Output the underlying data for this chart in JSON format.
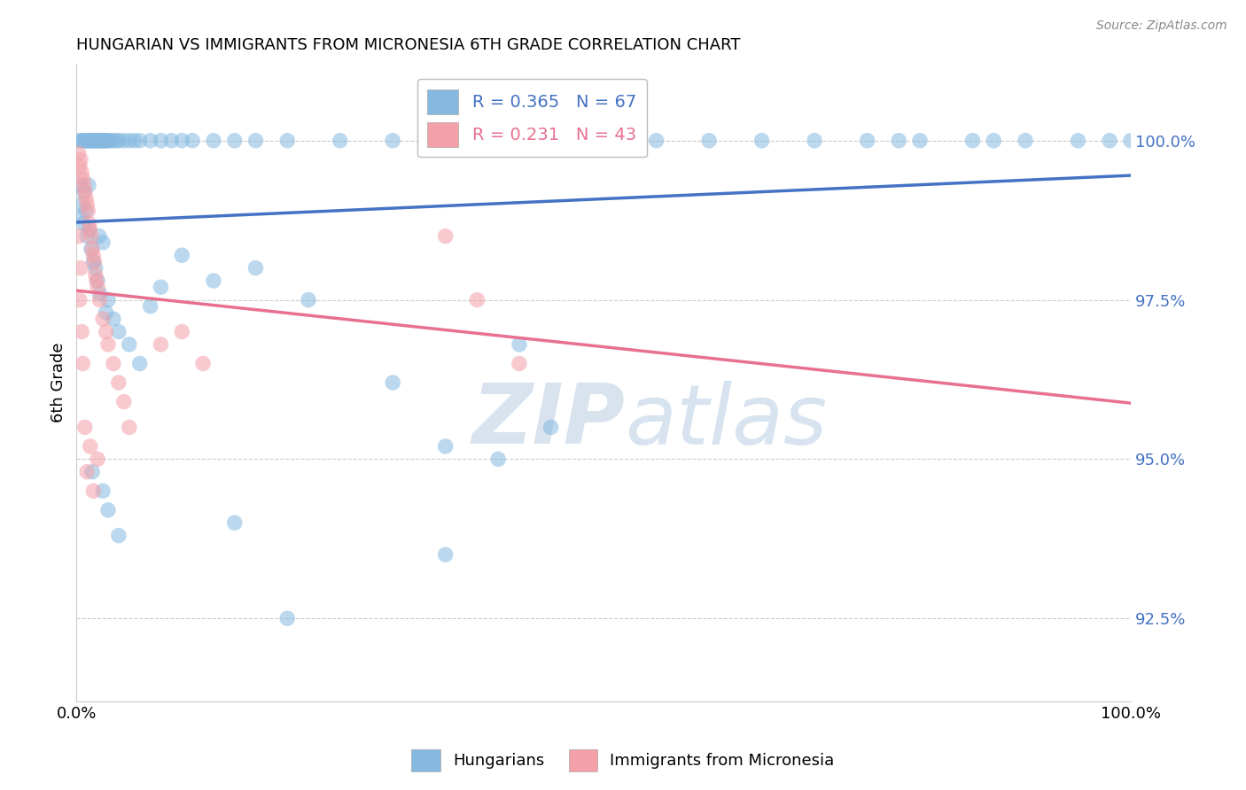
{
  "title": "HUNGARIAN VS IMMIGRANTS FROM MICRONESIA 6TH GRADE CORRELATION CHART",
  "source": "Source: ZipAtlas.com",
  "ylabel": "6th Grade",
  "xmin": 0.0,
  "xmax": 100.0,
  "ymin": 91.2,
  "ymax": 101.2,
  "yticks": [
    92.5,
    95.0,
    97.5,
    100.0
  ],
  "ytick_labels": [
    "92.5%",
    "95.0%",
    "97.5%",
    "100.0%"
  ],
  "xticks": [
    0.0,
    20.0,
    40.0,
    60.0,
    80.0,
    100.0
  ],
  "xtick_labels": [
    "0.0%",
    "",
    "",
    "",
    "",
    "100.0%"
  ],
  "blue_color": "#85b9e0",
  "pink_color": "#f4a0a8",
  "blue_line_color": "#4472C4",
  "pink_line_color": "#e87090",
  "watermark_color": "#dce8f0",
  "blue_x": [
    0.3,
    0.5,
    0.6,
    0.8,
    0.9,
    1.0,
    1.1,
    1.2,
    1.3,
    1.4,
    1.5,
    1.6,
    1.7,
    1.8,
    1.9,
    2.0,
    2.1,
    2.2,
    2.3,
    2.4,
    2.5,
    2.6,
    2.7,
    2.8,
    2.9,
    3.0,
    3.2,
    3.5,
    3.8,
    4.0,
    4.5,
    5.0,
    5.5,
    6.0,
    7.0,
    8.0,
    9.0,
    10.0,
    11.0,
    13.0,
    15.0,
    17.0,
    20.0,
    25.0,
    30.0,
    35.0,
    40.0,
    45.0,
    48.0,
    50.0,
    55.0,
    60.0,
    65.0,
    70.0,
    75.0,
    78.0,
    80.0,
    85.0,
    87.0,
    90.0,
    95.0,
    98.0,
    100.0,
    0.4,
    0.7,
    1.15,
    2.15
  ],
  "blue_y": [
    100.0,
    100.0,
    100.0,
    100.0,
    100.0,
    100.0,
    100.0,
    100.0,
    100.0,
    100.0,
    100.0,
    100.0,
    100.0,
    100.0,
    100.0,
    100.0,
    100.0,
    100.0,
    100.0,
    100.0,
    100.0,
    100.0,
    100.0,
    100.0,
    100.0,
    100.0,
    100.0,
    100.0,
    100.0,
    100.0,
    100.0,
    100.0,
    100.0,
    100.0,
    100.0,
    100.0,
    100.0,
    100.0,
    100.0,
    100.0,
    100.0,
    100.0,
    100.0,
    100.0,
    100.0,
    100.0,
    100.0,
    100.0,
    100.0,
    100.0,
    100.0,
    100.0,
    100.0,
    100.0,
    100.0,
    100.0,
    100.0,
    100.0,
    100.0,
    100.0,
    100.0,
    100.0,
    100.0,
    98.8,
    99.2,
    99.3,
    98.5
  ],
  "blue_x2": [
    0.3,
    0.5,
    0.7,
    0.9,
    1.0,
    1.2,
    1.4,
    1.6,
    1.8,
    2.0,
    2.2,
    2.5,
    2.8,
    3.0,
    3.5,
    4.0,
    5.0,
    6.0,
    7.0,
    8.0,
    10.0,
    13.0,
    17.0,
    22.0,
    30.0,
    35.0,
    40.0,
    42.0,
    45.0
  ],
  "blue_y2": [
    99.3,
    99.0,
    98.7,
    98.9,
    98.5,
    98.6,
    98.3,
    98.1,
    98.0,
    97.8,
    97.6,
    98.4,
    97.3,
    97.5,
    97.2,
    97.0,
    96.8,
    96.5,
    97.4,
    97.7,
    98.2,
    97.8,
    98.0,
    97.5,
    96.2,
    95.2,
    95.0,
    96.8,
    95.5
  ],
  "blue_x3": [
    1.5,
    2.5,
    3.0,
    4.0,
    15.0,
    20.0,
    35.0
  ],
  "blue_y3": [
    94.8,
    94.5,
    94.2,
    93.8,
    94.0,
    92.5,
    93.5
  ],
  "pink_x": [
    0.2,
    0.3,
    0.4,
    0.5,
    0.6,
    0.7,
    0.8,
    0.9,
    1.0,
    1.1,
    1.2,
    1.3,
    1.4,
    1.5,
    1.6,
    1.7,
    1.8,
    1.9,
    2.0,
    2.2,
    2.5,
    2.8,
    3.0,
    3.5,
    4.0,
    4.5,
    5.0,
    8.0,
    10.0,
    12.0,
    35.0,
    38.0,
    42.0
  ],
  "pink_y": [
    99.8,
    99.6,
    99.7,
    99.5,
    99.4,
    99.3,
    99.2,
    99.1,
    99.0,
    98.9,
    98.7,
    98.6,
    98.5,
    98.3,
    98.2,
    98.1,
    97.9,
    97.8,
    97.7,
    97.5,
    97.2,
    97.0,
    96.8,
    96.5,
    96.2,
    95.9,
    95.5,
    96.8,
    97.0,
    96.5,
    98.5,
    97.5,
    96.5
  ],
  "pink_x2": [
    0.2,
    0.3,
    0.4,
    0.5,
    0.6,
    0.8,
    1.0,
    1.3,
    1.6,
    2.0
  ],
  "pink_y2": [
    98.5,
    97.5,
    98.0,
    97.0,
    96.5,
    95.5,
    94.8,
    95.2,
    94.5,
    95.0
  ]
}
